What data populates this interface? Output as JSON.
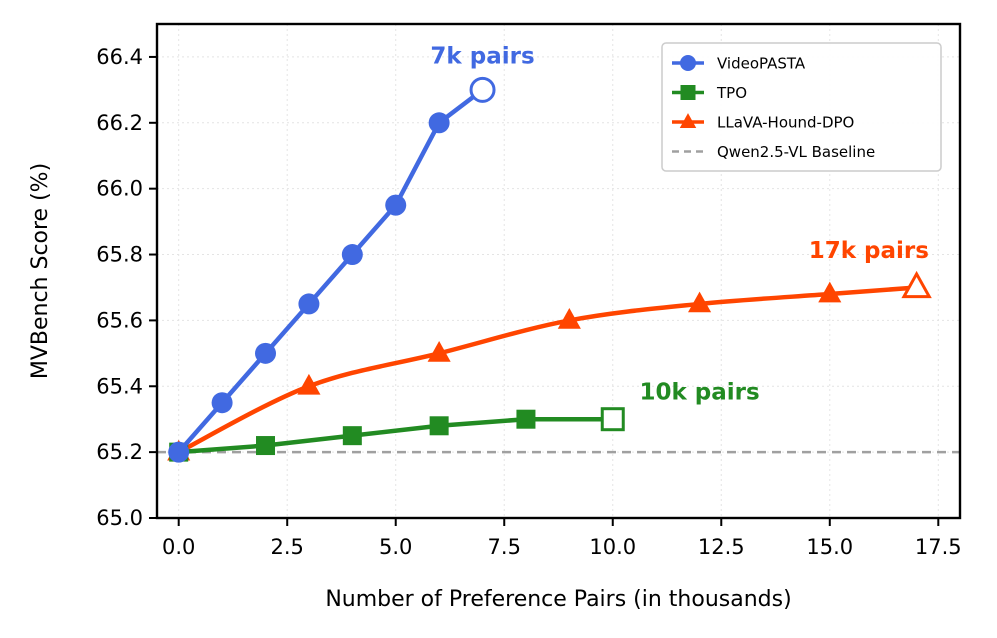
{
  "chart_data": {
    "type": "line",
    "xlabel": "Number of Preference Pairs (in thousands)",
    "ylabel": "MVBench Score (%)",
    "xlim": [
      -0.5,
      18.0
    ],
    "ylim": [
      65.0,
      66.5
    ],
    "xticks": [
      0.0,
      2.5,
      5.0,
      7.5,
      10.0,
      12.5,
      15.0,
      17.5
    ],
    "xtick_labels": [
      "0.0",
      "2.5",
      "5.0",
      "7.5",
      "10.0",
      "12.5",
      "15.0",
      "17.5"
    ],
    "yticks": [
      65.0,
      65.2,
      65.4,
      65.6,
      65.8,
      66.0,
      66.2,
      66.4
    ],
    "ytick_labels": [
      "65.0",
      "65.2",
      "65.4",
      "65.6",
      "65.8",
      "66.0",
      "66.2",
      "66.4"
    ],
    "grid": true,
    "legend_position": "top-right",
    "series": [
      {
        "name": "VideoPASTA",
        "color": "#4169e1",
        "marker": "circle",
        "x": [
          0,
          1,
          2,
          3,
          4,
          5,
          6,
          7
        ],
        "y": [
          65.2,
          65.35,
          65.5,
          65.65,
          65.8,
          65.95,
          66.2,
          66.3
        ],
        "open_last": true,
        "annotation": {
          "text": "7k pairs",
          "x": 7,
          "y": 66.38
        }
      },
      {
        "name": "TPO",
        "color": "#228b22",
        "marker": "square",
        "x": [
          0,
          2,
          4,
          6,
          8,
          10
        ],
        "y": [
          65.2,
          65.22,
          65.25,
          65.28,
          65.3,
          65.3
        ],
        "open_last": true,
        "annotation": {
          "text": "10k pairs",
          "x": 12.0,
          "y": 65.36
        }
      },
      {
        "name": "LLaVA-Hound-DPO",
        "color": "#ff4500",
        "marker": "triangle",
        "x": [
          0,
          3,
          6,
          9,
          12,
          15,
          17
        ],
        "y": [
          65.2,
          65.4,
          65.5,
          65.6,
          65.65,
          65.68,
          65.7
        ],
        "open_last": true,
        "smooth": true,
        "annotation": {
          "text": "17k pairs",
          "x": 15.9,
          "y": 65.79
        }
      }
    ],
    "baseline": {
      "name": "Qwen2.5-VL Baseline",
      "y": 65.2,
      "color": "#a0a0a0"
    }
  }
}
